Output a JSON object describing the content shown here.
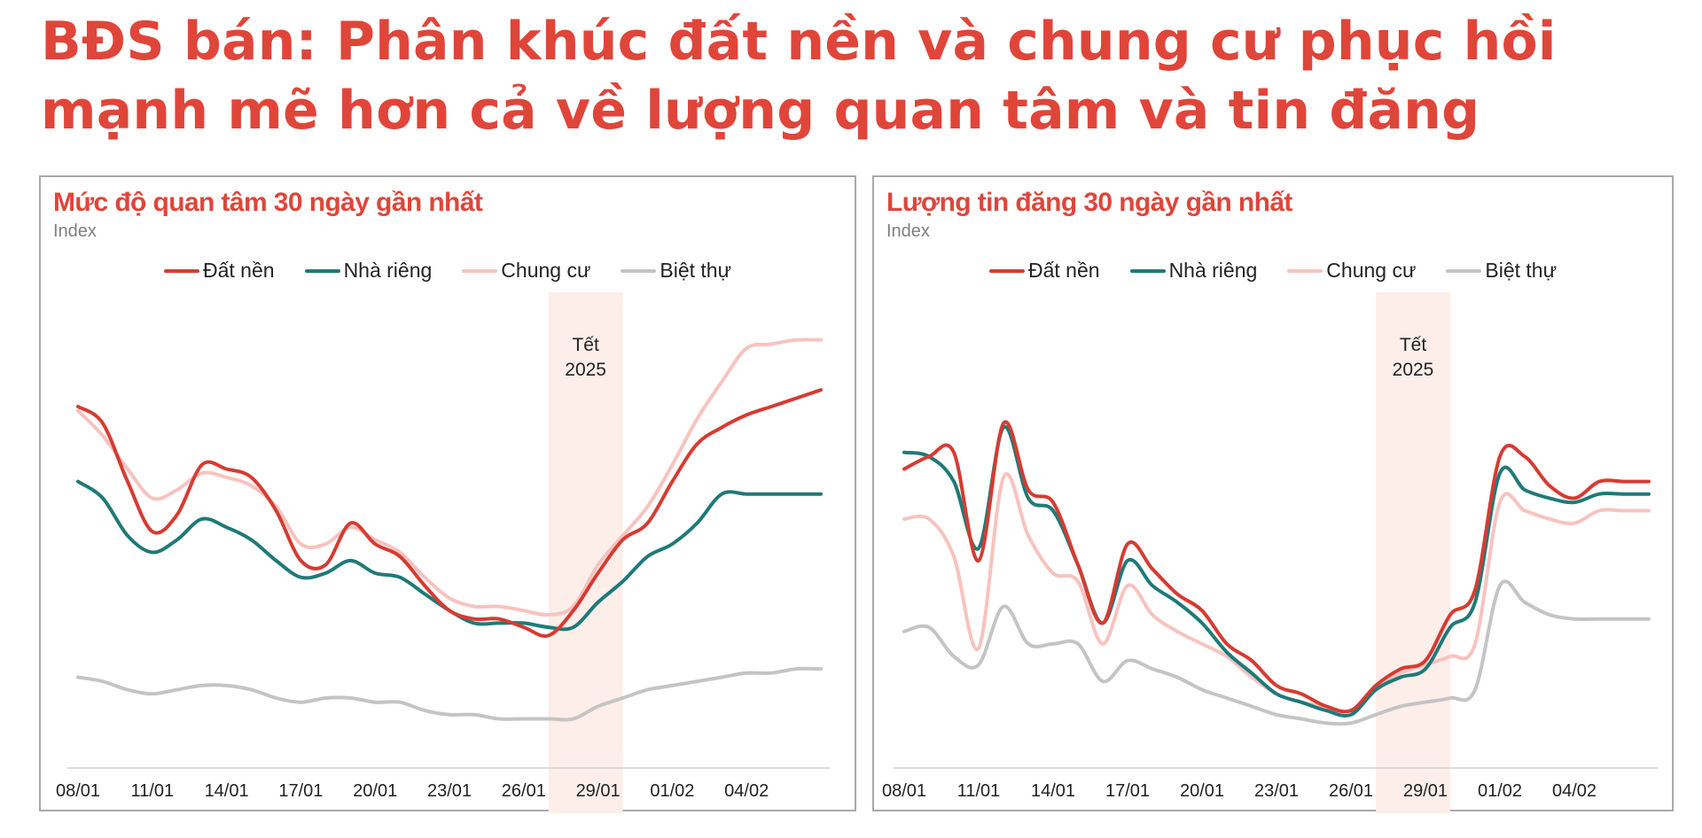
{
  "headline": {
    "line1": "BĐS bán: Phân khúc đất nền và chung cư phục hồi",
    "line2": "mạnh mẽ hơn cả về lượng quan tâm và tin đăng"
  },
  "colors": {
    "title": "#e0453a",
    "dat_nen": "#d63b32",
    "nha_rieng": "#1f7a78",
    "chung_cu": "#f7c3bf",
    "biet_thu": "#c4c4c4",
    "tet_band": "#fdeeea"
  },
  "chart_data": [
    {
      "type": "line",
      "title": "Mức độ quan tâm 30 ngày gần nhất",
      "ylabel": "Index",
      "legend_position": "top-center",
      "grid": false,
      "categories": [
        "08/01",
        "09/01",
        "10/01",
        "11/01",
        "12/01",
        "13/01",
        "14/01",
        "15/01",
        "16/01",
        "17/01",
        "18/01",
        "19/01",
        "20/01",
        "21/01",
        "22/01",
        "23/01",
        "24/01",
        "25/01",
        "26/01",
        "27/01",
        "28/01",
        "29/01",
        "30/01",
        "31/01",
        "01/02",
        "02/02",
        "03/02",
        "04/02",
        "05/02",
        "06/02",
        "07/02"
      ],
      "tick_labels": [
        "08/01",
        "11/01",
        "14/01",
        "17/01",
        "20/01",
        "23/01",
        "26/01",
        "29/01",
        "01/02",
        "04/02"
      ],
      "ylim": [
        0,
        100
      ],
      "annotation": {
        "text_line1": "Tết",
        "text_line2": "2025",
        "start": "27/01",
        "end": "30/01"
      },
      "series": [
        {
          "name": "Đất nền",
          "color": "#d63b32",
          "values": [
            80,
            76,
            62,
            50,
            54,
            66,
            65,
            63,
            55,
            43,
            42,
            52,
            47,
            44,
            37,
            31,
            29,
            29,
            27,
            25,
            31,
            40,
            48,
            52,
            62,
            71,
            75,
            78,
            80,
            82,
            84
          ]
        },
        {
          "name": "Nhà riêng",
          "color": "#1f7a78",
          "values": [
            62,
            58,
            49,
            45,
            48,
            53,
            51,
            48,
            43,
            39,
            40,
            43,
            40,
            39,
            35,
            31,
            28,
            28,
            28,
            27,
            27,
            33,
            38,
            44,
            47,
            52,
            59,
            59,
            59,
            59,
            59
          ]
        },
        {
          "name": "Chung cư",
          "color": "#f7c3bf",
          "values": [
            79,
            73,
            65,
            58,
            60,
            64,
            63,
            61,
            56,
            47,
            47,
            51,
            48,
            45,
            39,
            34,
            32,
            32,
            31,
            30,
            32,
            42,
            49,
            56,
            66,
            77,
            86,
            94,
            95,
            96,
            96
          ]
        },
        {
          "name": "Biệt thự",
          "color": "#c4c4c4",
          "values": [
            15,
            14,
            12,
            11,
            12,
            13,
            13,
            12,
            10,
            9,
            10,
            10,
            9,
            9,
            7,
            6,
            6,
            5,
            5,
            5,
            5,
            8,
            10,
            12,
            13,
            14,
            15,
            16,
            16,
            17,
            17
          ]
        }
      ]
    },
    {
      "type": "line",
      "title": "Lượng tin đăng 30 ngày gần nhất",
      "ylabel": "Index",
      "legend_position": "top-center",
      "grid": false,
      "categories": [
        "08/01",
        "09/01",
        "10/01",
        "11/01",
        "12/01",
        "13/01",
        "14/01",
        "15/01",
        "16/01",
        "17/01",
        "18/01",
        "19/01",
        "20/01",
        "21/01",
        "22/01",
        "23/01",
        "24/01",
        "25/01",
        "26/01",
        "27/01",
        "28/01",
        "29/01",
        "30/01",
        "31/01",
        "01/02",
        "02/02",
        "03/02",
        "04/02",
        "05/02",
        "06/02",
        "07/02"
      ],
      "tick_labels": [
        "08/01",
        "11/01",
        "14/01",
        "17/01",
        "20/01",
        "23/01",
        "26/01",
        "29/01",
        "01/02",
        "04/02"
      ],
      "ylim": [
        0,
        100
      ],
      "annotation": {
        "text_line1": "Tết",
        "text_line2": "2025",
        "start": "27/01",
        "end": "30/01"
      },
      "series": [
        {
          "name": "Đất nền",
          "color": "#d63b32",
          "values": [
            65,
            68,
            69,
            43,
            76,
            60,
            57,
            42,
            28,
            47,
            41,
            35,
            31,
            23,
            19,
            13,
            11,
            8,
            7,
            13,
            17,
            19,
            30,
            36,
            68,
            68,
            61,
            58,
            62,
            62,
            62
          ]
        },
        {
          "name": "Nhà riêng",
          "color": "#1f7a78",
          "values": [
            69,
            68,
            62,
            46,
            75,
            58,
            55,
            42,
            28,
            43,
            37,
            33,
            28,
            21,
            16,
            11,
            9,
            7,
            6,
            12,
            15,
            17,
            27,
            33,
            64,
            60,
            58,
            57,
            59,
            59,
            59
          ]
        },
        {
          "name": "Chung cư",
          "color": "#f7c3bf",
          "values": [
            53,
            53,
            44,
            22,
            63,
            49,
            40,
            38,
            23,
            37,
            30,
            26,
            23,
            20,
            15,
            11,
            9,
            8,
            7,
            12,
            16,
            18,
            20,
            23,
            57,
            55,
            53,
            52,
            55,
            55,
            55
          ]
        },
        {
          "name": "Biệt thự",
          "color": "#c4c4c4",
          "values": [
            26,
            27,
            20,
            18,
            32,
            23,
            23,
            23,
            14,
            19,
            17,
            15,
            12,
            10,
            8,
            6,
            5,
            4,
            4,
            6,
            8,
            9,
            10,
            12,
            37,
            33,
            30,
            29,
            29,
            29,
            29
          ]
        }
      ]
    }
  ]
}
